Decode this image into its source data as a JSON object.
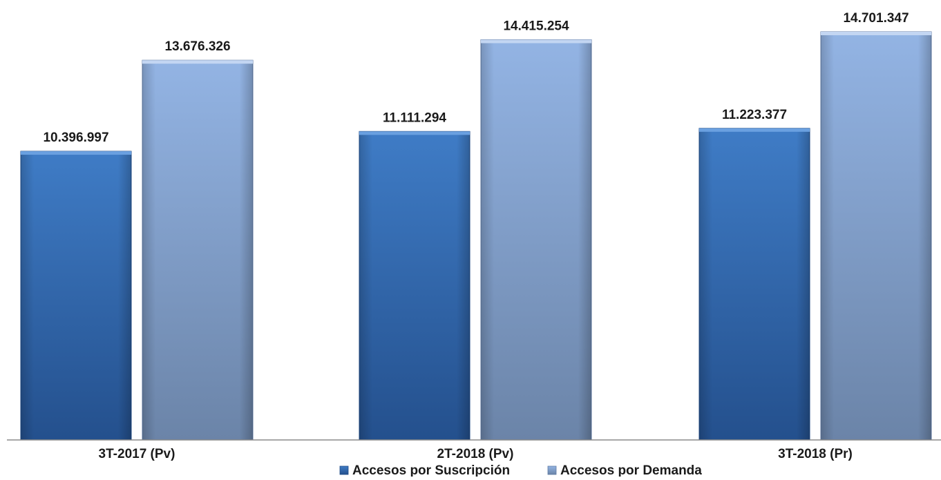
{
  "chart_data": {
    "type": "bar",
    "title": "",
    "xlabel": "",
    "ylabel": "",
    "categories": [
      "3T-2017 (Pv)",
      "2T-2018 (Pv)",
      "3T-2018 (Pr)"
    ],
    "series": [
      {
        "name": "Accesos por Suscripción",
        "values": [
          10396997,
          11111294,
          11223377
        ],
        "labels": [
          "10.396.997",
          "11.111.294",
          "11.223.377"
        ],
        "color_top": "#3f7cc6",
        "color_bottom": "#24508d"
      },
      {
        "name": "Accesos por Demanda",
        "values": [
          13676326,
          14415254,
          14701347
        ],
        "labels": [
          "13.676.326",
          "14.415.254",
          "14.701.347"
        ],
        "color_top": "#93b4e4",
        "color_bottom": "#6b84a8"
      }
    ],
    "ylim": [
      0,
      14701347
    ],
    "grid": false,
    "legend_position": "bottom"
  }
}
